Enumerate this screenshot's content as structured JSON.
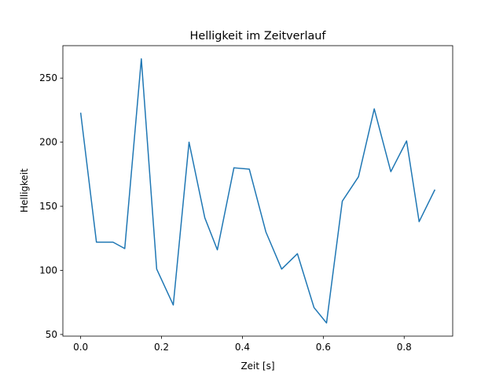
{
  "chart_data": {
    "type": "line",
    "title": "Helligkeit im Zeitverlauf",
    "xlabel": "Zeit [s]",
    "ylabel": "Helligkeit",
    "xlim": [
      -0.044,
      0.92
    ],
    "ylim": [
      48.7,
      275.3
    ],
    "xticks": [
      0.0,
      0.2,
      0.4,
      0.6,
      0.8
    ],
    "xtick_labels": [
      "0.0",
      "0.2",
      "0.4",
      "0.6",
      "0.8"
    ],
    "yticks": [
      50,
      100,
      150,
      200,
      250
    ],
    "ytick_labels": [
      "50",
      "100",
      "150",
      "200",
      "250"
    ],
    "grid": false,
    "series": [
      {
        "name": "Helligkeit",
        "color": "#1f77b4",
        "x": [
          0.0,
          0.039,
          0.08,
          0.109,
          0.15,
          0.188,
          0.229,
          0.268,
          0.307,
          0.338,
          0.379,
          0.417,
          0.458,
          0.497,
          0.536,
          0.577,
          0.608,
          0.647,
          0.687,
          0.726,
          0.767,
          0.806,
          0.837,
          0.876
        ],
        "values": [
          223,
          122,
          122,
          117,
          265,
          101,
          73,
          200,
          141,
          116,
          180,
          179,
          130,
          101,
          113,
          71,
          59,
          154,
          173,
          226,
          177,
          201,
          138,
          163
        ]
      }
    ]
  }
}
